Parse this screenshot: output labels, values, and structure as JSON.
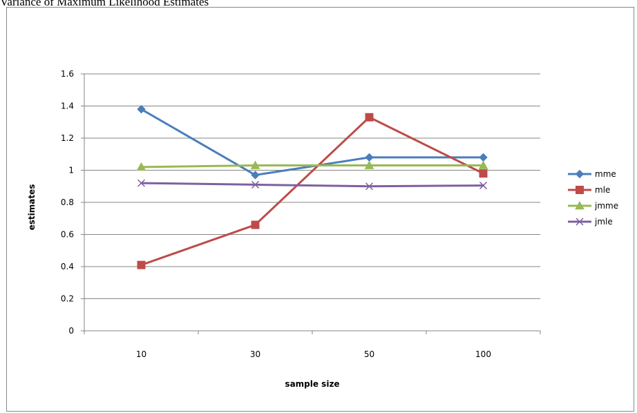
{
  "page": {
    "title": "Variance of Maximum Likelihood Estimates"
  },
  "chart_data": {
    "type": "line",
    "title": "",
    "xlabel": "sample size",
    "ylabel": "estimates",
    "categories": [
      "10",
      "30",
      "50",
      "100"
    ],
    "ylim": [
      0,
      1.6
    ],
    "yticks": [
      "0",
      "0.2",
      "0.4",
      "0.6",
      "0.8",
      "1",
      "1.2",
      "1.4",
      "1.6"
    ],
    "grid": true,
    "legend_position": "right",
    "series": [
      {
        "name": "mme",
        "values": [
          1.38,
          0.97,
          1.08,
          1.08
        ],
        "color": "#4a7ebb",
        "marker": "diamond"
      },
      {
        "name": "mle",
        "values": [
          0.41,
          0.66,
          1.33,
          0.98
        ],
        "color": "#be4b48",
        "marker": "square"
      },
      {
        "name": "jmme",
        "values": [
          1.02,
          1.03,
          1.03,
          1.03
        ],
        "color": "#98b954",
        "marker": "triangle"
      },
      {
        "name": "jmle",
        "values": [
          0.92,
          0.91,
          0.9,
          0.905
        ],
        "color": "#7d60a0",
        "marker": "x"
      }
    ]
  }
}
